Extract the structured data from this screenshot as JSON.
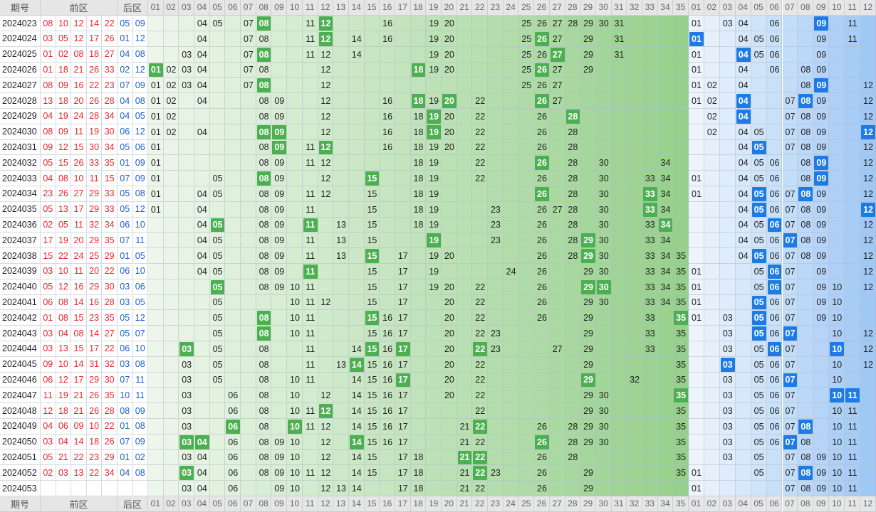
{
  "headers": {
    "period": "期号",
    "front": "前区",
    "back": "后区"
  },
  "front_cols": [
    "01",
    "02",
    "03",
    "04",
    "05",
    "06",
    "07",
    "08",
    "09",
    "10",
    "11",
    "12",
    "13",
    "14",
    "15",
    "16",
    "17",
    "18",
    "19",
    "20",
    "21",
    "22",
    "23",
    "24",
    "25",
    "26",
    "27",
    "28",
    "29",
    "30",
    "31",
    "32",
    "33",
    "34",
    "35"
  ],
  "back_cols": [
    "01",
    "02",
    "03",
    "04",
    "05",
    "06",
    "07",
    "08",
    "09",
    "10",
    "11",
    "12"
  ],
  "colors": {
    "front_hit": "#4caf50",
    "back_hit": "#1e7be6",
    "front_text": "#e8262b",
    "back_text": "#1a5fd6"
  },
  "rows": [
    {
      "period": "2024023",
      "front": [
        "08",
        "10",
        "12",
        "14",
        "22"
      ],
      "back": [
        "05",
        "09"
      ],
      "f": "04 05 07 08! 11 12! 16 19 20 25 26 27 28 29 30 31",
      "b": "01 03 04 06 09! 11"
    },
    {
      "period": "2024024",
      "front": [
        "03",
        "05",
        "12",
        "17",
        "26"
      ],
      "back": [
        "01",
        "12"
      ],
      "f": "04 07 08 11 12! 14 16 19 20 25 26! 27 29 31",
      "b": "01! 04 05 06 09 11"
    },
    {
      "period": "2024025",
      "front": [
        "01",
        "02",
        "08",
        "18",
        "27"
      ],
      "back": [
        "04",
        "08"
      ],
      "f": "03 04 07 08! 11 12 14 19 20 25 26 27! 29 31",
      "b": "01 04! 05 06 09"
    },
    {
      "period": "2024026",
      "front": [
        "01",
        "18",
        "21",
        "26",
        "33"
      ],
      "back": [
        "02",
        "12"
      ],
      "f": "01! 02 03 04 07 08 12 18! 19 20 25 26! 27 29",
      "b": "01 04 06 08 09"
    },
    {
      "period": "2024027",
      "front": [
        "08",
        "09",
        "16",
        "22",
        "23"
      ],
      "back": [
        "07",
        "09"
      ],
      "f": "01 02 03 04 07 08! 12 25 26 27",
      "b": "01 02 04 08 09! 12"
    },
    {
      "period": "2024028",
      "front": [
        "13",
        "18",
        "20",
        "26",
        "28"
      ],
      "back": [
        "04",
        "08"
      ],
      "f": "01 02 04 08 09 12 16 18! 19 20! 22 26! 27",
      "b": "01 02 04! 07 08! 09 12"
    },
    {
      "period": "2024029",
      "front": [
        "04",
        "19",
        "24",
        "28",
        "34"
      ],
      "back": [
        "04",
        "05"
      ],
      "f": "01 02 08 09 12 16 18 19! 20 22 26 28!",
      "b": "02 04! 07 08 09 12"
    },
    {
      "period": "2024030",
      "front": [
        "08",
        "09",
        "11",
        "19",
        "30"
      ],
      "back": [
        "06",
        "12"
      ],
      "f": "01 02 04 08! 09! 12 16 18 19! 20 22 26 28",
      "b": "02 04 05 07 08 09 12!"
    },
    {
      "period": "2024031",
      "front": [
        "09",
        "12",
        "15",
        "30",
        "34"
      ],
      "back": [
        "05",
        "06"
      ],
      "f": "01 08 09! 11 12! 16 18 19 20 22 26 28",
      "b": "04 05! 07 08 09 12"
    },
    {
      "period": "2024032",
      "front": [
        "05",
        "15",
        "26",
        "33",
        "35"
      ],
      "back": [
        "01",
        "09"
      ],
      "f": "01 08 09 11 12 18 19 22 26! 28 30 34",
      "b": "04 05 06 08 09! 12"
    },
    {
      "period": "2024033",
      "front": [
        "04",
        "08",
        "10",
        "11",
        "15"
      ],
      "back": [
        "07",
        "09"
      ],
      "f": "01 05 08! 09 12 15! 18 19 22 26 28 30 33 34",
      "b": "01 04 05 06 08 09! 12"
    },
    {
      "period": "2024034",
      "front": [
        "23",
        "26",
        "27",
        "29",
        "33"
      ],
      "back": [
        "05",
        "08"
      ],
      "f": "01 04 05 08 09 11 12 15 18 19 26! 28 30 33! 34",
      "b": "01 04 05! 06 07 08! 09 12"
    },
    {
      "period": "2024035",
      "front": [
        "05",
        "13",
        "17",
        "29",
        "33"
      ],
      "back": [
        "05",
        "12"
      ],
      "f": "01 04 08 09 11 15 18 19 23 26 27 28 30 33! 34",
      "b": "04 05! 06 07 08 09 12!"
    },
    {
      "period": "2024036",
      "front": [
        "02",
        "05",
        "11",
        "32",
        "34"
      ],
      "back": [
        "06",
        "10"
      ],
      "f": "04 05! 08 09 11! 13 15 18 19 23 26 28 30 33 34!",
      "b": "04 05 06! 07 08 09 12"
    },
    {
      "period": "2024037",
      "front": [
        "17",
        "19",
        "20",
        "29",
        "35"
      ],
      "back": [
        "07",
        "11"
      ],
      "f": "04 05 08 09 11 13 15 19! 23 26 28 29! 30 33 34",
      "b": "04 05 06 07! 08 09 12"
    },
    {
      "period": "2024038",
      "front": [
        "15",
        "22",
        "24",
        "25",
        "29"
      ],
      "back": [
        "01",
        "05"
      ],
      "f": "04 05 08 09 11 13 15! 17 19 20 26 28 29! 30 33 34 35",
      "b": "04 05! 06 07 08 09 12"
    },
    {
      "period": "2024039",
      "front": [
        "03",
        "10",
        "11",
        "20",
        "22"
      ],
      "back": [
        "06",
        "10"
      ],
      "f": "04 05 08 09 11! 15 17 19 24 26 29 30 33 34 35",
      "b": "01 05 06! 07 09 12"
    },
    {
      "period": "2024040",
      "front": [
        "05",
        "12",
        "16",
        "29",
        "30"
      ],
      "back": [
        "03",
        "06"
      ],
      "f": "05! 08 09 10 11 15 17 19 20 22 26 29! 30! 33 34 35",
      "b": "01 05 06! 07 09 10 12"
    },
    {
      "period": "2024041",
      "front": [
        "06",
        "08",
        "14",
        "16",
        "28"
      ],
      "back": [
        "03",
        "05"
      ],
      "f": "05 10 11 12 15 17 20 22 26 29 30 33 34 35",
      "b": "01 05! 06 07 09 10"
    },
    {
      "period": "2024042",
      "front": [
        "01",
        "08",
        "15",
        "23",
        "35"
      ],
      "back": [
        "05",
        "12"
      ],
      "f": "05 08! 10 11 15! 16 17 20 22 26 29 33 35!",
      "b": "01 03 05! 06 07 09 10"
    },
    {
      "period": "2024043",
      "front": [
        "03",
        "04",
        "08",
        "14",
        "27"
      ],
      "back": [
        "05",
        "07"
      ],
      "f": "05 08! 10 11 15 16 17 20 22 23 29 33 35",
      "b": "03 05! 06 07! 10 12"
    },
    {
      "period": "2024044",
      "front": [
        "03",
        "13",
        "15",
        "17",
        "22"
      ],
      "back": [
        "06",
        "10"
      ],
      "f": "03! 05 08 11 14 15! 16 17! 20 22! 23 27 29 33 35",
      "b": "03 05 06! 07 10! 12"
    },
    {
      "period": "2024045",
      "front": [
        "09",
        "10",
        "14",
        "31",
        "32"
      ],
      "back": [
        "03",
        "08"
      ],
      "f": "03 05 08 11 13 14! 15 16 17 20 22 29 35",
      "b": "03! 05 06 07 10 12"
    },
    {
      "period": "2024046",
      "front": [
        "06",
        "12",
        "17",
        "29",
        "30"
      ],
      "back": [
        "07",
        "11"
      ],
      "f": "03 05 08 10 11 14 15 16 17! 20 22 29! 32 35",
      "b": "03 05 06 07! 10"
    },
    {
      "period": "2024047",
      "front": [
        "11",
        "19",
        "21",
        "26",
        "35"
      ],
      "back": [
        "10",
        "11"
      ],
      "f": "03 06 08 10 12 14 15 16 17 20 22 29 30 35!",
      "b": "03 05 06 07 10! 11!"
    },
    {
      "period": "2024048",
      "front": [
        "12",
        "18",
        "21",
        "26",
        "28"
      ],
      "back": [
        "08",
        "09"
      ],
      "f": "03 06 08 10 11 12! 14 15 16 17 22 29 30 35",
      "b": "03 05 06 07 10 11"
    },
    {
      "period": "2024049",
      "front": [
        "04",
        "06",
        "09",
        "10",
        "22"
      ],
      "back": [
        "01",
        "08"
      ],
      "f": "03 06! 08 10! 11 12 14 15 16 17 21 22! 26 28 29 30 35",
      "b": "03 05 06 07 08! 10 11"
    },
    {
      "period": "2024050",
      "front": [
        "03",
        "04",
        "14",
        "18",
        "26"
      ],
      "back": [
        "07",
        "09"
      ],
      "f": "03! 04! 06 08 09 10 12 14! 15 16 17 21 22 26! 28 29 30 35",
      "b": "03 05 06 07! 08 10 11"
    },
    {
      "period": "2024051",
      "front": [
        "05",
        "21",
        "22",
        "23",
        "29"
      ],
      "back": [
        "01",
        "02"
      ],
      "f": "03 04 06 08 09 10 12 14 15 17 18 21! 22! 26 28 35",
      "b": "03 05 07 08 09 10 11"
    },
    {
      "period": "2024052",
      "front": [
        "02",
        "03",
        "13",
        "22",
        "34"
      ],
      "back": [
        "04",
        "08"
      ],
      "f": "03! 04 06 08 09 10 11 12 14 15 17 18 21 22! 23 26 29 35",
      "b": "01 05 07 08! 09 10 11"
    },
    {
      "period": "2024053",
      "front": [],
      "back": [],
      "f": "03 04 06 09 10 12 13 14 17 18 21 22 26 29",
      "b": "01 07 08 09 10 11"
    }
  ]
}
